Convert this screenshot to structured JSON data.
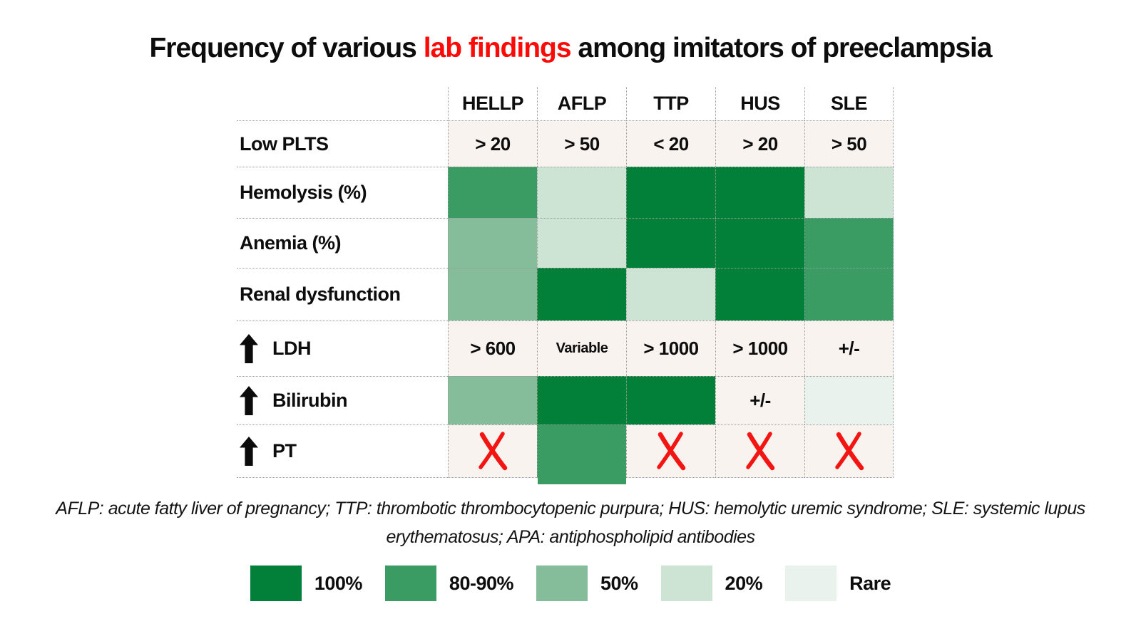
{
  "title": {
    "prefix": "Frequency of various ",
    "highlight": "lab findings",
    "suffix": " among imitators of preeclampsia"
  },
  "colors": {
    "green_100": "#028039",
    "green_80_90": "#3a9b63",
    "green_50": "#85bd9b",
    "green_20": "#cde3d4",
    "green_rare": "#e9f2ec",
    "cell_bg": "#f9f3f0",
    "x_red": "#f31511",
    "title_red": "#fb0b07"
  },
  "table": {
    "columns": [
      "HELLP",
      "AFLP",
      "TTP",
      "HUS",
      "SLE"
    ],
    "rows": [
      {
        "label": "Low PLTS",
        "arrow": false,
        "cells": [
          {
            "t": "text",
            "v": "> 20"
          },
          {
            "t": "text",
            "v": "> 50"
          },
          {
            "t": "text",
            "v": "< 20"
          },
          {
            "t": "text",
            "v": "> 20"
          },
          {
            "t": "text",
            "v": "> 50"
          }
        ]
      },
      {
        "label": "Hemolysis (%)",
        "arrow": false,
        "cells": [
          {
            "t": "fill",
            "level": "80-90"
          },
          {
            "t": "fill",
            "level": "20"
          },
          {
            "t": "fill",
            "level": "100"
          },
          {
            "t": "fill",
            "level": "100"
          },
          {
            "t": "fill",
            "level": "20"
          }
        ]
      },
      {
        "label": "Anemia (%)",
        "arrow": false,
        "cells": [
          {
            "t": "fill",
            "level": "50"
          },
          {
            "t": "fill",
            "level": "20"
          },
          {
            "t": "fill",
            "level": "100"
          },
          {
            "t": "fill",
            "level": "100"
          },
          {
            "t": "fill",
            "level": "80-90"
          }
        ]
      },
      {
        "label": "Renal dysfunction",
        "arrow": false,
        "cells": [
          {
            "t": "fill",
            "level": "50"
          },
          {
            "t": "fill",
            "level": "100"
          },
          {
            "t": "fill",
            "level": "20"
          },
          {
            "t": "fill",
            "level": "100"
          },
          {
            "t": "fill",
            "level": "80-90"
          }
        ]
      },
      {
        "label": "LDH",
        "arrow": true,
        "cells": [
          {
            "t": "text",
            "v": "> 600"
          },
          {
            "t": "text",
            "v": "Variable",
            "small": true
          },
          {
            "t": "text",
            "v": "> 1000"
          },
          {
            "t": "text",
            "v": "> 1000"
          },
          {
            "t": "text",
            "v": "+/-"
          }
        ]
      },
      {
        "label": "Bilirubin",
        "arrow": true,
        "cells": [
          {
            "t": "fill",
            "level": "50"
          },
          {
            "t": "fill",
            "level": "100"
          },
          {
            "t": "fill",
            "level": "100"
          },
          {
            "t": "text",
            "v": "+/-"
          },
          {
            "t": "fill",
            "level": "rare"
          }
        ]
      },
      {
        "label": "PT",
        "arrow": true,
        "cells": [
          {
            "t": "x"
          },
          {
            "t": "fill",
            "level": "80-90",
            "bleed": true
          },
          {
            "t": "x"
          },
          {
            "t": "x"
          },
          {
            "t": "x"
          }
        ]
      }
    ]
  },
  "footnote": {
    "line1": "AFLP: acute fatty liver of pregnancy; TTP: thrombotic thrombocytopenic purpura; HUS: hemolytic uremic syndrome; SLE: systemic lupus",
    "line2": "erythematosus; APA: antiphospholipid antibodies"
  },
  "legend": {
    "items": [
      {
        "label": "100%",
        "level": "100"
      },
      {
        "label": "80-90%",
        "level": "80-90"
      },
      {
        "label": "50%",
        "level": "50"
      },
      {
        "label": "20%",
        "level": "20"
      },
      {
        "label": "Rare",
        "level": "rare"
      }
    ]
  },
  "chart_data": {
    "type": "heatmap",
    "title": "Frequency of various lab findings among imitators of preeclampsia",
    "columns": [
      "HELLP",
      "AFLP",
      "TTP",
      "HUS",
      "SLE"
    ],
    "rows": [
      "Low PLTS",
      "Hemolysis (%)",
      "Anemia (%)",
      "Renal dysfunction",
      "↑ LDH",
      "↑ Bilirubin",
      "↑ PT"
    ],
    "cells": [
      [
        "> 20",
        "> 50",
        "< 20",
        "> 20",
        "> 50"
      ],
      [
        "80-90%",
        "20%",
        "100%",
        "100%",
        "20%"
      ],
      [
        "50%",
        "20%",
        "100%",
        "100%",
        "80-90%"
      ],
      [
        "50%",
        "100%",
        "20%",
        "100%",
        "80-90%"
      ],
      [
        "> 600",
        "Variable",
        "> 1000",
        "> 1000",
        "+/-"
      ],
      [
        "50%",
        "100%",
        "100%",
        "+/-",
        "Rare"
      ],
      [
        "absent (X)",
        "80-90%",
        "absent (X)",
        "absent (X)",
        "absent (X)"
      ]
    ],
    "legend": [
      "100%",
      "80-90%",
      "50%",
      "20%",
      "Rare"
    ],
    "legend_position": "bottom"
  }
}
